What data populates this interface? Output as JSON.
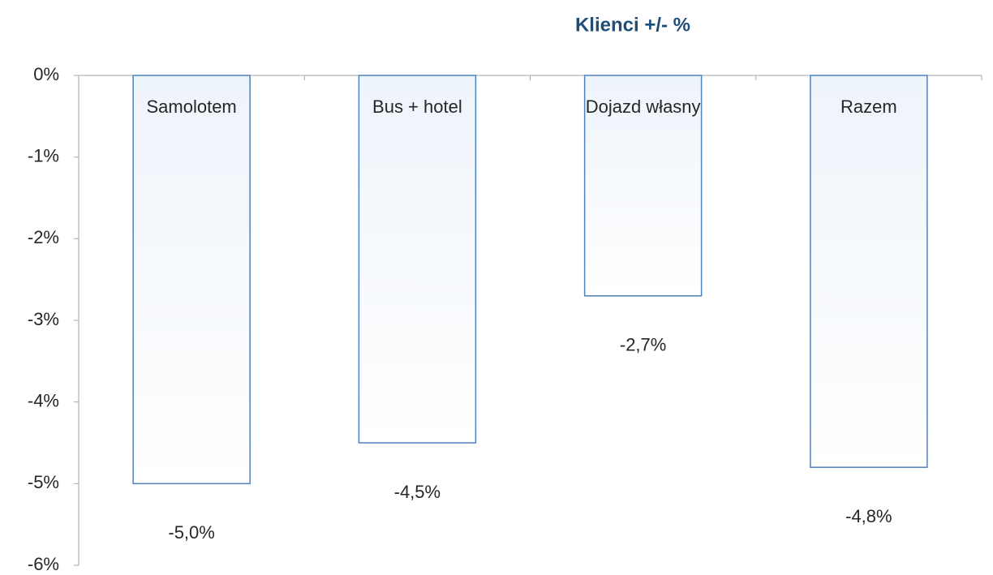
{
  "chart_data": {
    "type": "bar",
    "title": "Klienci +/- %",
    "categories": [
      "Samolotem",
      "Bus + hotel",
      "Dojazd własny",
      "Razem"
    ],
    "values": [
      -5.0,
      -4.5,
      -2.7,
      -4.8
    ],
    "value_labels": [
      "-5,0%",
      "-4,5%",
      "-2,7%",
      "-4,8%"
    ],
    "color": "#4f81bd",
    "ylim": [
      -6,
      0
    ],
    "yticks": [
      {
        "value": 0,
        "label": "0%"
      },
      {
        "value": -1,
        "label": "-1%"
      },
      {
        "value": -2,
        "label": "-2%"
      },
      {
        "value": -3,
        "label": "-3%"
      },
      {
        "value": -4,
        "label": "-4%"
      },
      {
        "value": -5,
        "label": "-5%"
      },
      {
        "value": -6,
        "label": "-6%"
      }
    ]
  }
}
